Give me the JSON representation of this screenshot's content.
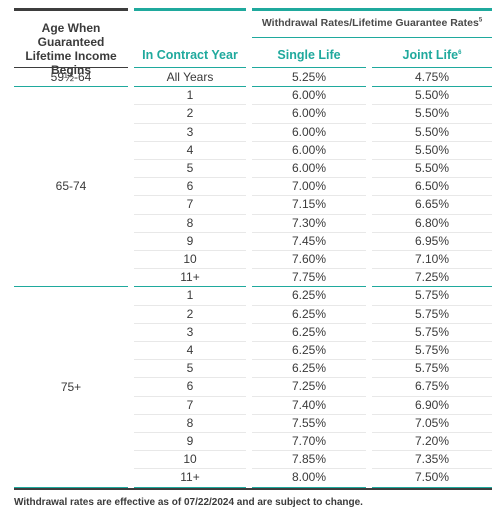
{
  "colors": {
    "accent": "#1fa99d",
    "dark_bar": "#3d3d3d",
    "text": "#3a3a3a"
  },
  "header": {
    "age_label": "Age When Guaranteed Lifetime Income Begins",
    "group_label": "Withdrawal Rates/Lifetime Guarantee Rates",
    "group_footnote": "5",
    "contract_year_label": "In Contract Year",
    "single_life_label": "Single Life",
    "joint_life_label": "Joint Life",
    "joint_life_footnote": "6"
  },
  "groups": [
    {
      "age": "59½-64",
      "rows": [
        {
          "year": "All Years",
          "single": "5.25%",
          "joint": "4.75%"
        }
      ]
    },
    {
      "age": "65-74",
      "rows": [
        {
          "year": "1",
          "single": "6.00%",
          "joint": "5.50%"
        },
        {
          "year": "2",
          "single": "6.00%",
          "joint": "5.50%"
        },
        {
          "year": "3",
          "single": "6.00%",
          "joint": "5.50%"
        },
        {
          "year": "4",
          "single": "6.00%",
          "joint": "5.50%"
        },
        {
          "year": "5",
          "single": "6.00%",
          "joint": "5.50%"
        },
        {
          "year": "6",
          "single": "7.00%",
          "joint": "6.50%"
        },
        {
          "year": "7",
          "single": "7.15%",
          "joint": "6.65%"
        },
        {
          "year": "8",
          "single": "7.30%",
          "joint": "6.80%"
        },
        {
          "year": "9",
          "single": "7.45%",
          "joint": "6.95%"
        },
        {
          "year": "10",
          "single": "7.60%",
          "joint": "7.10%"
        },
        {
          "year": "11+",
          "single": "7.75%",
          "joint": "7.25%"
        }
      ]
    },
    {
      "age": "75+",
      "rows": [
        {
          "year": "1",
          "single": "6.25%",
          "joint": "5.75%"
        },
        {
          "year": "2",
          "single": "6.25%",
          "joint": "5.75%"
        },
        {
          "year": "3",
          "single": "6.25%",
          "joint": "5.75%"
        },
        {
          "year": "4",
          "single": "6.25%",
          "joint": "5.75%"
        },
        {
          "year": "5",
          "single": "6.25%",
          "joint": "5.75%"
        },
        {
          "year": "6",
          "single": "7.25%",
          "joint": "6.75%"
        },
        {
          "year": "7",
          "single": "7.40%",
          "joint": "6.90%"
        },
        {
          "year": "8",
          "single": "7.55%",
          "joint": "7.05%"
        },
        {
          "year": "9",
          "single": "7.70%",
          "joint": "7.20%"
        },
        {
          "year": "10",
          "single": "7.85%",
          "joint": "7.35%"
        },
        {
          "year": "11+",
          "single": "8.00%",
          "joint": "7.50%"
        }
      ]
    }
  ],
  "footnote": "Withdrawal rates are effective as of 07/22/2024 and are subject to change."
}
